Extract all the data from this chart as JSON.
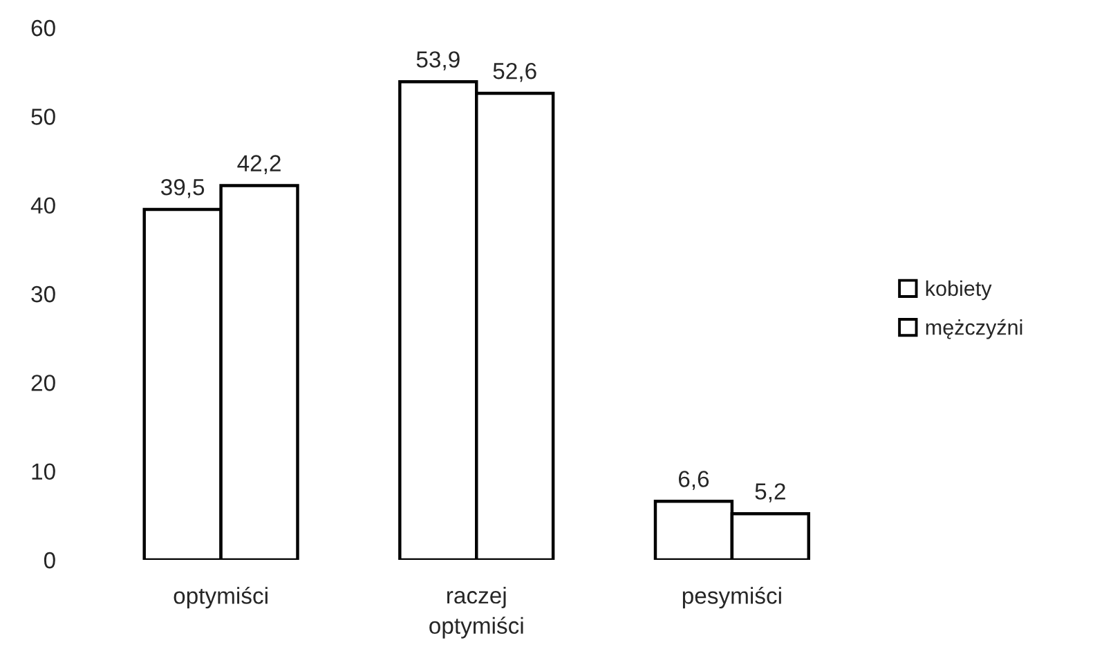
{
  "chart_data": {
    "type": "bar",
    "categories": [
      "optymiści",
      "raczej\noptymiści",
      "pesymiści"
    ],
    "series": [
      {
        "name": "kobiety",
        "color": "#ffffff",
        "values": [
          39.5,
          53.9,
          6.6
        ],
        "value_labels": [
          "39,5",
          "53,9",
          "6,6"
        ]
      },
      {
        "name": "mężczyźni",
        "color": "#ffffff",
        "values": [
          42.2,
          52.6,
          5.2
        ],
        "value_labels": [
          "42,2",
          "52,6",
          "5,2"
        ]
      }
    ],
    "ylim": [
      0,
      60
    ],
    "yticks": [
      0,
      10,
      20,
      30,
      40,
      50,
      60
    ],
    "legend": "right"
  }
}
